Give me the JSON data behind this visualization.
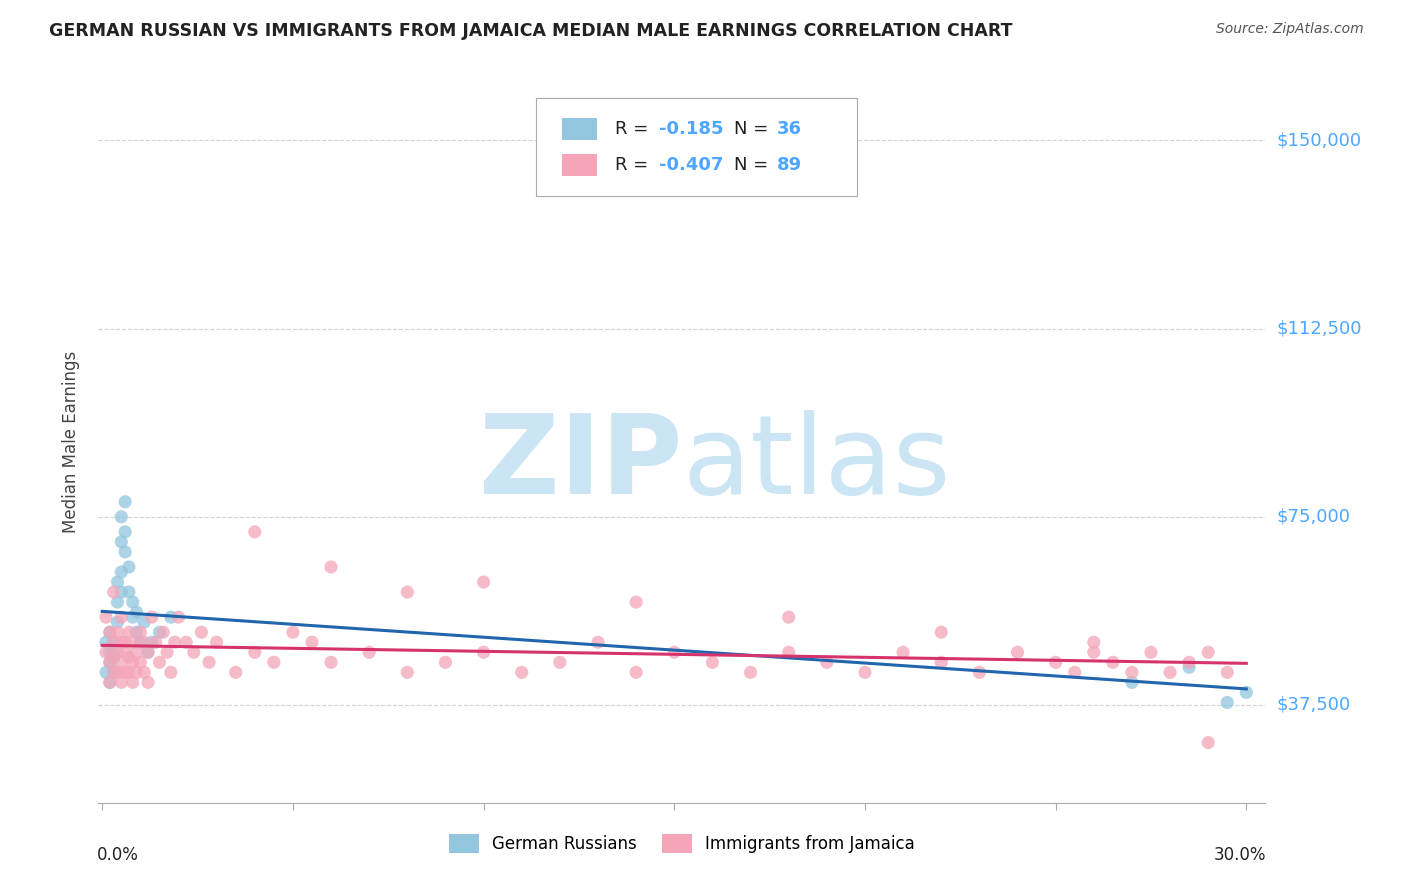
{
  "title": "GERMAN RUSSIAN VS IMMIGRANTS FROM JAMAICA MEDIAN MALE EARNINGS CORRELATION CHART",
  "source": "Source: ZipAtlas.com",
  "ylabel": "Median Male Earnings",
  "ylim": [
    18000,
    162000
  ],
  "xlim": [
    -0.001,
    0.305
  ],
  "legend_label1": "German Russians",
  "legend_label2": "Immigrants from Jamaica",
  "blue_color": "#92c5de",
  "pink_color": "#f4a5b8",
  "blue_line_color": "#2166ac",
  "pink_line_color": "#d6336c",
  "tick_label_color": "#4da6ff",
  "grid_color": "#cccccc",
  "watermark_color": "#cce5f5",
  "gr_x": [
    0.001,
    0.001,
    0.002,
    0.002,
    0.002,
    0.002,
    0.003,
    0.003,
    0.003,
    0.003,
    0.004,
    0.004,
    0.004,
    0.005,
    0.005,
    0.005,
    0.005,
    0.006,
    0.006,
    0.006,
    0.007,
    0.007,
    0.008,
    0.008,
    0.009,
    0.009,
    0.01,
    0.011,
    0.012,
    0.013,
    0.015,
    0.018,
    0.27,
    0.285,
    0.295,
    0.3
  ],
  "gr_y": [
    50000,
    44000,
    48000,
    46000,
    52000,
    42000,
    50000,
    48000,
    44000,
    47000,
    54000,
    58000,
    62000,
    60000,
    64000,
    70000,
    75000,
    68000,
    72000,
    78000,
    65000,
    60000,
    55000,
    58000,
    52000,
    56000,
    50000,
    54000,
    48000,
    50000,
    52000,
    55000,
    42000,
    45000,
    38000,
    40000
  ],
  "jam_x": [
    0.001,
    0.001,
    0.002,
    0.002,
    0.002,
    0.003,
    0.003,
    0.003,
    0.003,
    0.004,
    0.004,
    0.004,
    0.005,
    0.005,
    0.005,
    0.005,
    0.006,
    0.006,
    0.006,
    0.007,
    0.007,
    0.007,
    0.008,
    0.008,
    0.008,
    0.009,
    0.009,
    0.01,
    0.01,
    0.011,
    0.011,
    0.012,
    0.012,
    0.013,
    0.014,
    0.015,
    0.016,
    0.017,
    0.018,
    0.019,
    0.02,
    0.022,
    0.024,
    0.026,
    0.028,
    0.03,
    0.035,
    0.04,
    0.045,
    0.05,
    0.055,
    0.06,
    0.07,
    0.08,
    0.09,
    0.1,
    0.11,
    0.12,
    0.13,
    0.14,
    0.15,
    0.16,
    0.17,
    0.18,
    0.19,
    0.2,
    0.21,
    0.22,
    0.23,
    0.24,
    0.25,
    0.255,
    0.26,
    0.265,
    0.27,
    0.275,
    0.28,
    0.285,
    0.29,
    0.295,
    0.04,
    0.06,
    0.08,
    0.1,
    0.14,
    0.18,
    0.22,
    0.26,
    0.29
  ],
  "jam_y": [
    55000,
    48000,
    52000,
    46000,
    42000,
    50000,
    47000,
    44000,
    60000,
    48000,
    52000,
    44000,
    50000,
    46000,
    42000,
    55000,
    48000,
    44000,
    50000,
    47000,
    52000,
    44000,
    50000,
    46000,
    42000,
    48000,
    44000,
    52000,
    46000,
    50000,
    44000,
    48000,
    42000,
    55000,
    50000,
    46000,
    52000,
    48000,
    44000,
    50000,
    55000,
    50000,
    48000,
    52000,
    46000,
    50000,
    44000,
    48000,
    46000,
    52000,
    50000,
    46000,
    48000,
    44000,
    46000,
    48000,
    44000,
    46000,
    50000,
    44000,
    48000,
    46000,
    44000,
    48000,
    46000,
    44000,
    48000,
    46000,
    44000,
    48000,
    46000,
    44000,
    48000,
    46000,
    44000,
    48000,
    44000,
    46000,
    48000,
    44000,
    72000,
    65000,
    60000,
    62000,
    58000,
    55000,
    52000,
    50000,
    30000
  ]
}
